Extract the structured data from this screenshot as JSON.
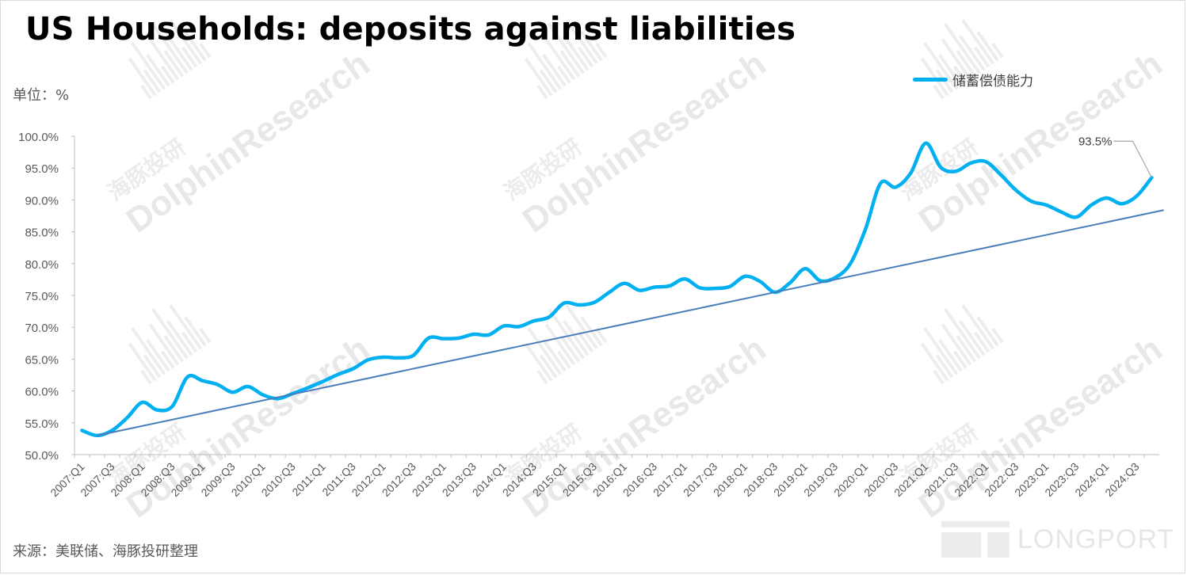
{
  "title": "US Households: deposits against liabilities",
  "unit_label": "单位：%",
  "source_label": "来源：美联储、海豚投研整理",
  "legend": {
    "series_name": "储蓄偿债能力",
    "color": "#00b0f0"
  },
  "watermark": {
    "cn": "海豚投研",
    "en": "DolphinResearch",
    "logo": "LONGPORT"
  },
  "chart_data": {
    "type": "line",
    "title": "US Households: deposits against liabilities",
    "xlabel": "",
    "ylabel": "%",
    "ylim": [
      50,
      100
    ],
    "yticks": [
      "100.0%",
      "95.0%",
      "90.0%",
      "85.0%",
      "80.0%",
      "75.0%",
      "70.0%",
      "65.0%",
      "60.0%",
      "55.0%",
      "50.0%"
    ],
    "ytick_values": [
      100,
      95,
      90,
      85,
      80,
      75,
      70,
      65,
      60,
      55,
      50
    ],
    "xtick_labels": [
      "2007:Q1",
      "2007:Q3",
      "2008:Q1",
      "2008:Q3",
      "2009:Q1",
      "2009:Q3",
      "2010:Q1",
      "2010:Q3",
      "2011:Q1",
      "2011:Q3",
      "2012:Q1",
      "2012:Q3",
      "2013:Q1",
      "2013:Q3",
      "2014:Q1",
      "2014:Q3",
      "2015:Q1",
      "2015:Q3",
      "2016:Q1",
      "2016:Q3",
      "2017:Q1",
      "2017:Q3",
      "2018:Q1",
      "2018:Q3",
      "2019:Q1",
      "2019:Q3",
      "2020:Q1",
      "2020:Q3",
      "2021:Q1",
      "2021:Q3",
      "2022:Q1",
      "2022:Q3",
      "2023:Q1",
      "2023:Q3",
      "2024:Q1",
      "2024:Q3"
    ],
    "categories": [
      "2007:Q1",
      "2007:Q2",
      "2007:Q3",
      "2007:Q4",
      "2008:Q1",
      "2008:Q2",
      "2008:Q3",
      "2008:Q4",
      "2009:Q1",
      "2009:Q2",
      "2009:Q3",
      "2009:Q4",
      "2010:Q1",
      "2010:Q2",
      "2010:Q3",
      "2010:Q4",
      "2011:Q1",
      "2011:Q2",
      "2011:Q3",
      "2011:Q4",
      "2012:Q1",
      "2012:Q2",
      "2012:Q3",
      "2012:Q4",
      "2013:Q1",
      "2013:Q2",
      "2013:Q3",
      "2013:Q4",
      "2014:Q1",
      "2014:Q2",
      "2014:Q3",
      "2014:Q4",
      "2015:Q1",
      "2015:Q2",
      "2015:Q3",
      "2015:Q4",
      "2016:Q1",
      "2016:Q2",
      "2016:Q3",
      "2016:Q4",
      "2017:Q1",
      "2017:Q2",
      "2017:Q3",
      "2017:Q4",
      "2018:Q1",
      "2018:Q2",
      "2018:Q3",
      "2018:Q4",
      "2019:Q1",
      "2019:Q2",
      "2019:Q3",
      "2019:Q4",
      "2020:Q1",
      "2020:Q2",
      "2020:Q3",
      "2020:Q4",
      "2021:Q1",
      "2021:Q2",
      "2021:Q3",
      "2021:Q4",
      "2022:Q1",
      "2022:Q2",
      "2022:Q3",
      "2022:Q4",
      "2023:Q1",
      "2023:Q2",
      "2023:Q3",
      "2023:Q4",
      "2024:Q1",
      "2024:Q2",
      "2024:Q3",
      "2024:Q4"
    ],
    "series": [
      {
        "name": "储蓄偿债能力",
        "color": "#00b0f0",
        "values": [
          53.8,
          53.0,
          53.8,
          55.8,
          58.2,
          57.0,
          57.6,
          62.2,
          61.6,
          61.0,
          59.8,
          60.7,
          59.4,
          58.8,
          59.6,
          60.5,
          61.5,
          62.6,
          63.5,
          64.9,
          65.3,
          65.2,
          65.6,
          68.3,
          68.2,
          68.3,
          68.9,
          68.8,
          70.2,
          70.1,
          71.0,
          71.6,
          73.8,
          73.5,
          73.9,
          75.5,
          76.9,
          75.8,
          76.3,
          76.5,
          77.6,
          76.2,
          76.1,
          76.4,
          78.0,
          77.2,
          75.5,
          77.0,
          79.2,
          77.3,
          77.8,
          80.0,
          85.4,
          92.6,
          92.0,
          94.2,
          98.9,
          95.1,
          94.5,
          95.8,
          96.0,
          93.9,
          91.5,
          89.8,
          89.2,
          88.1,
          87.3,
          89.2,
          90.3,
          89.4,
          90.6,
          93.5
        ]
      },
      {
        "name": "trend",
        "color": "#4a7ebb",
        "values_at": [
          [
            1,
            53.0
          ],
          [
            71.8,
            88.4
          ]
        ]
      }
    ],
    "annotations": [
      {
        "category": "2024:Q4",
        "label": "93.5%"
      }
    ],
    "grid": false,
    "legend_position": "top-right"
  }
}
